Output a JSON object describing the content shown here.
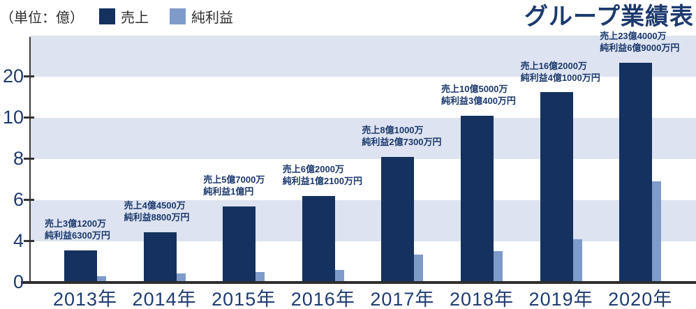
{
  "chart": {
    "title": "グループ業績表",
    "unit_label": "（単位：億）",
    "legend": [
      {
        "label": "売上",
        "color": "#14315f"
      },
      {
        "label": "純利益",
        "color": "#7f9bca"
      }
    ]
  },
  "chart_data": {
    "type": "bar",
    "title": "グループ業績表",
    "unit": "億",
    "unit_label": "（単位：億）",
    "categories": [
      "2013年",
      "2014年",
      "2015年",
      "2016年",
      "2017年",
      "2018年",
      "2019年",
      "2020年"
    ],
    "series": [
      {
        "name": "売上",
        "color": "#14315f",
        "values": [
          3.12,
          4.45,
          5.7,
          6.2,
          8.1,
          10.5,
          16.2,
          23.4
        ]
      },
      {
        "name": "純利益",
        "color": "#7f9bca",
        "values": [
          0.63,
          0.88,
          1.0,
          1.21,
          2.73,
          3.04,
          4.1,
          6.9
        ]
      }
    ],
    "annotations": [
      {
        "sales": "売上3億1200万",
        "profit": "純利益6300万円"
      },
      {
        "sales": "売上4億4500万",
        "profit": "純利益8800万円"
      },
      {
        "sales": "売上5億7000万",
        "profit": "純利益1億円"
      },
      {
        "sales": "売上6億2000万",
        "profit": "純利益1億2100万円"
      },
      {
        "sales": "売上8億1000万",
        "profit": "純利益2億7300万円"
      },
      {
        "sales": "売上10億5000万",
        "profit": "純利益3億400万円"
      },
      {
        "sales": "売上16億2000万",
        "profit": "純利益4億1000万円"
      },
      {
        "sales": "売上23億4000万",
        "profit": "純利益6億9000万円"
      }
    ],
    "y_axis": {
      "tick_labels": [
        "0",
        "4",
        "6",
        "8",
        "10",
        "20"
      ],
      "tick_values": [
        0,
        4,
        6,
        8,
        10,
        20
      ],
      "scale": "non-linear: labeled ticks evenly spaced",
      "grid": "alternating horizontal bands",
      "band_color": "#dde3f0"
    },
    "legend_position": "top-left",
    "axis_color": "#333333",
    "label_color": "#1e3c72",
    "annotation_color": "#1c3a6e"
  }
}
